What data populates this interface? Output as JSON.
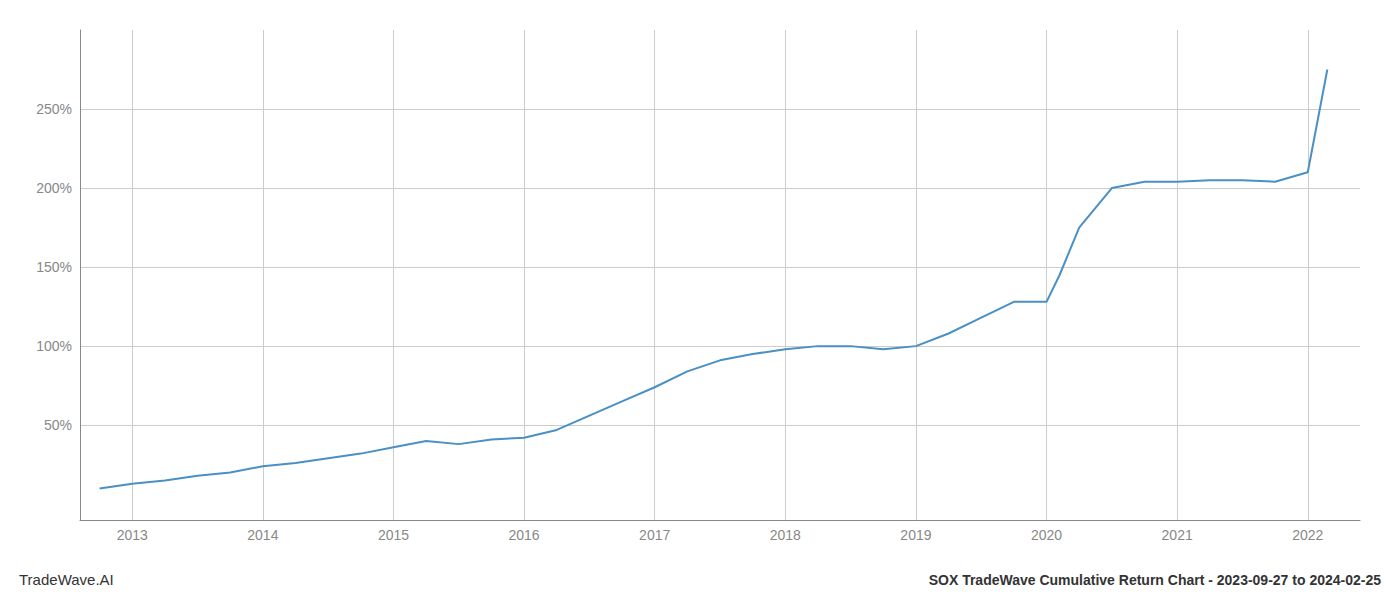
{
  "chart_data": {
    "type": "line",
    "title": "SOX TradeWave Cumulative Return Chart - 2023-09-27 to 2024-02-25",
    "annotations": [
      "TradeWave.AI"
    ],
    "color": "#4a90c4",
    "x": [
      2012.75,
      2013.0,
      2013.25,
      2013.5,
      2013.75,
      2014.0,
      2014.25,
      2014.5,
      2014.75,
      2015.0,
      2015.25,
      2015.5,
      2015.75,
      2016.0,
      2016.25,
      2016.5,
      2016.75,
      2017.0,
      2017.25,
      2017.5,
      2017.75,
      2018.0,
      2018.25,
      2018.5,
      2018.75,
      2019.0,
      2019.25,
      2019.5,
      2019.75,
      2020.0,
      2020.1,
      2020.25,
      2020.5,
      2020.75,
      2021.0,
      2021.25,
      2021.5,
      2021.75,
      2022.0,
      2022.15
    ],
    "values": [
      10,
      13,
      15,
      18,
      20,
      24,
      26,
      29,
      32,
      36,
      40,
      38,
      41,
      42,
      47,
      56,
      65,
      74,
      84,
      91,
      95,
      98,
      100,
      100,
      98,
      100,
      108,
      118,
      128,
      128,
      145,
      175,
      200,
      204,
      204,
      205,
      205,
      204,
      210,
      275
    ],
    "xlim": [
      2012.6,
      2022.4
    ],
    "xticks": [
      2013,
      2014,
      2015,
      2016,
      2017,
      2018,
      2019,
      2020,
      2021,
      2022
    ],
    "ylim": [
      -10,
      300
    ],
    "yticks": [
      {
        "value": 50,
        "label": "50%"
      },
      {
        "value": 100,
        "label": "100%"
      },
      {
        "value": 150,
        "label": "150%"
      },
      {
        "value": 200,
        "label": "200%"
      },
      {
        "value": 250,
        "label": "250%"
      }
    ],
    "grid": true
  }
}
